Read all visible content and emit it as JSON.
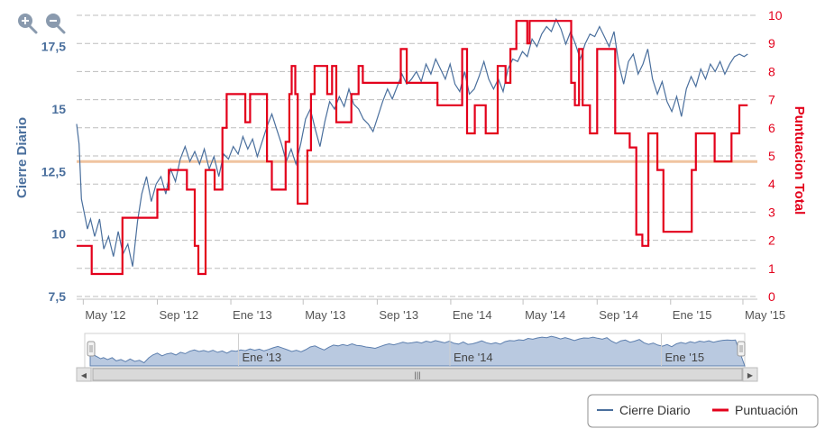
{
  "toolbar": {
    "zoom_in_icon": "zoom-in-magnifier-icon",
    "zoom_out_icon": "zoom-out-magnifier-icon"
  },
  "colors": {
    "price": "#4a6f9d",
    "score": "#e3001b",
    "average": "#f0c4a0",
    "grid": "#bdbdbd",
    "navigator_fill": "#b9c9e0",
    "navigator_line": "#5d7fae",
    "left_axis_text": "#4a6f9d",
    "right_axis_text": "#e3001b"
  },
  "legend": {
    "price_label": "Cierre Diario",
    "score_label": "Puntuación"
  },
  "navigator": {
    "labels": [
      "Ene '13",
      "Ene '14",
      "Ene '15"
    ],
    "scrollbar_grip": "|||",
    "left_arrow": "◀",
    "right_arrow": "▶"
  },
  "chart_data": {
    "type": "line",
    "title": "",
    "xlabel": "",
    "y_left": {
      "label": "Cierre Diario",
      "range": [
        7.5,
        18.75
      ],
      "ticks": [
        "7,5",
        "10",
        "12,5",
        "15",
        "17,5"
      ],
      "tick_values": [
        7.5,
        10,
        12.5,
        15,
        17.5
      ]
    },
    "y_right": {
      "label": "Puntuacion Total",
      "range": [
        0,
        10
      ],
      "ticks": [
        "0",
        "1",
        "2",
        "3",
        "4",
        "5",
        "6",
        "7",
        "8",
        "9",
        "10"
      ],
      "tick_values": [
        0,
        1,
        2,
        3,
        4,
        5,
        6,
        7,
        8,
        9,
        10
      ]
    },
    "x_axis": {
      "ticks": [
        "May '12",
        "Sep '12",
        "Ene '13",
        "May '13",
        "Sep '13",
        "Ene '14",
        "May '14",
        "Sep '14",
        "Ene '15",
        "May '15"
      ],
      "tick_dates": [
        "2012-05-01",
        "2012-09-01",
        "2013-01-01",
        "2013-05-01",
        "2013-09-01",
        "2014-01-01",
        "2014-05-01",
        "2014-09-01",
        "2015-01-01",
        "2015-05-01"
      ],
      "range": [
        "2012-04-20",
        "2015-05-25"
      ]
    },
    "grid": true,
    "legend_position": "bottom-right",
    "reference_line": {
      "axis": "right",
      "value": 4.8
    },
    "series": [
      {
        "name": "Cierre Diario",
        "axis": "left",
        "points": [
          [
            "2012-04-20",
            14.4
          ],
          [
            "2012-04-24",
            13.6
          ],
          [
            "2012-04-28",
            11.4
          ],
          [
            "2012-05-03",
            10.8
          ],
          [
            "2012-05-08",
            10.2
          ],
          [
            "2012-05-13",
            10.6
          ],
          [
            "2012-05-20",
            9.9
          ],
          [
            "2012-05-28",
            10.6
          ],
          [
            "2012-06-04",
            9.4
          ],
          [
            "2012-06-12",
            9.9
          ],
          [
            "2012-06-20",
            9.1
          ],
          [
            "2012-06-28",
            10.1
          ],
          [
            "2012-07-06",
            9.2
          ],
          [
            "2012-07-14",
            9.6
          ],
          [
            "2012-07-22",
            8.7
          ],
          [
            "2012-07-30",
            10.5
          ],
          [
            "2012-08-06",
            11.6
          ],
          [
            "2012-08-14",
            12.3
          ],
          [
            "2012-08-22",
            11.3
          ],
          [
            "2012-08-30",
            12.0
          ],
          [
            "2012-09-07",
            12.3
          ],
          [
            "2012-09-15",
            11.6
          ],
          [
            "2012-09-23",
            12.6
          ],
          [
            "2012-10-01",
            12.1
          ],
          [
            "2012-10-09",
            13.0
          ],
          [
            "2012-10-17",
            13.5
          ],
          [
            "2012-10-25",
            12.9
          ],
          [
            "2012-11-02",
            13.3
          ],
          [
            "2012-11-10",
            12.8
          ],
          [
            "2012-11-18",
            13.4
          ],
          [
            "2012-11-26",
            12.6
          ],
          [
            "2012-12-04",
            13.1
          ],
          [
            "2012-12-12",
            12.3
          ],
          [
            "2012-12-20",
            13.2
          ],
          [
            "2012-12-28",
            13.0
          ],
          [
            "2013-01-05",
            13.5
          ],
          [
            "2013-01-13",
            13.2
          ],
          [
            "2013-01-21",
            13.9
          ],
          [
            "2013-01-29",
            13.4
          ],
          [
            "2013-02-06",
            13.8
          ],
          [
            "2013-02-14",
            13.1
          ],
          [
            "2013-02-22",
            13.7
          ],
          [
            "2013-03-02",
            14.3
          ],
          [
            "2013-03-10",
            14.8
          ],
          [
            "2013-03-18",
            14.2
          ],
          [
            "2013-03-26",
            13.6
          ],
          [
            "2013-04-03",
            12.9
          ],
          [
            "2013-04-11",
            13.4
          ],
          [
            "2013-04-19",
            12.8
          ],
          [
            "2013-04-27",
            13.6
          ],
          [
            "2013-05-05",
            14.6
          ],
          [
            "2013-05-13",
            15.0
          ],
          [
            "2013-05-21",
            14.2
          ],
          [
            "2013-05-29",
            13.5
          ],
          [
            "2013-06-06",
            14.5
          ],
          [
            "2013-06-14",
            15.3
          ],
          [
            "2013-06-22",
            15.0
          ],
          [
            "2013-06-30",
            15.5
          ],
          [
            "2013-07-08",
            15.1
          ],
          [
            "2013-07-16",
            15.8
          ],
          [
            "2013-07-24",
            15.2
          ],
          [
            "2013-08-01",
            15.0
          ],
          [
            "2013-08-09",
            14.6
          ],
          [
            "2013-08-17",
            14.4
          ],
          [
            "2013-08-25",
            14.1
          ],
          [
            "2013-09-02",
            14.7
          ],
          [
            "2013-09-10",
            15.3
          ],
          [
            "2013-09-18",
            15.8
          ],
          [
            "2013-09-26",
            15.4
          ],
          [
            "2013-10-04",
            15.9
          ],
          [
            "2013-10-12",
            16.4
          ],
          [
            "2013-10-20",
            16.0
          ],
          [
            "2013-10-28",
            16.2
          ],
          [
            "2013-11-05",
            16.5
          ],
          [
            "2013-11-13",
            16.1
          ],
          [
            "2013-11-21",
            16.8
          ],
          [
            "2013-11-29",
            16.4
          ],
          [
            "2013-12-07",
            17.0
          ],
          [
            "2013-12-15",
            16.6
          ],
          [
            "2013-12-23",
            16.2
          ],
          [
            "2013-12-31",
            16.8
          ],
          [
            "2014-01-08",
            16.0
          ],
          [
            "2014-01-16",
            15.7
          ],
          [
            "2014-01-24",
            16.5
          ],
          [
            "2014-02-01",
            15.6
          ],
          [
            "2014-02-09",
            15.8
          ],
          [
            "2014-02-17",
            16.3
          ],
          [
            "2014-02-25",
            16.9
          ],
          [
            "2014-03-05",
            16.2
          ],
          [
            "2014-03-13",
            15.8
          ],
          [
            "2014-03-21",
            16.2
          ],
          [
            "2014-03-29",
            15.7
          ],
          [
            "2014-04-06",
            16.6
          ],
          [
            "2014-04-14",
            17.0
          ],
          [
            "2014-04-22",
            16.9
          ],
          [
            "2014-04-30",
            17.3
          ],
          [
            "2014-05-08",
            17.1
          ],
          [
            "2014-05-16",
            17.8
          ],
          [
            "2014-05-24",
            17.5
          ],
          [
            "2014-06-01",
            18.0
          ],
          [
            "2014-06-09",
            18.3
          ],
          [
            "2014-06-17",
            18.1
          ],
          [
            "2014-06-25",
            18.6
          ],
          [
            "2014-07-03",
            18.2
          ],
          [
            "2014-07-11",
            17.6
          ],
          [
            "2014-07-19",
            18.1
          ],
          [
            "2014-07-27",
            17.6
          ],
          [
            "2014-08-04",
            17.0
          ],
          [
            "2014-08-12",
            17.6
          ],
          [
            "2014-08-20",
            18.0
          ],
          [
            "2014-08-28",
            17.9
          ],
          [
            "2014-09-05",
            18.3
          ],
          [
            "2014-09-13",
            17.9
          ],
          [
            "2014-09-21",
            17.5
          ],
          [
            "2014-09-29",
            18.1
          ],
          [
            "2014-10-07",
            16.8
          ],
          [
            "2014-10-15",
            16.0
          ],
          [
            "2014-10-23",
            16.9
          ],
          [
            "2014-10-31",
            17.2
          ],
          [
            "2014-11-08",
            16.4
          ],
          [
            "2014-11-16",
            16.8
          ],
          [
            "2014-11-24",
            17.4
          ],
          [
            "2014-12-02",
            16.2
          ],
          [
            "2014-12-10",
            15.6
          ],
          [
            "2014-12-18",
            16.1
          ],
          [
            "2014-12-26",
            15.3
          ],
          [
            "2015-01-03",
            14.9
          ],
          [
            "2015-01-11",
            15.5
          ],
          [
            "2015-01-19",
            14.7
          ],
          [
            "2015-01-27",
            15.8
          ],
          [
            "2015-02-04",
            16.3
          ],
          [
            "2015-02-12",
            15.9
          ],
          [
            "2015-02-20",
            16.6
          ],
          [
            "2015-02-28",
            16.2
          ],
          [
            "2015-03-08",
            16.8
          ],
          [
            "2015-03-16",
            16.5
          ],
          [
            "2015-03-24",
            16.9
          ],
          [
            "2015-04-01",
            16.4
          ],
          [
            "2015-04-09",
            16.8
          ],
          [
            "2015-04-17",
            17.1
          ],
          [
            "2015-04-25",
            17.2
          ],
          [
            "2015-05-03",
            17.1
          ],
          [
            "2015-05-09",
            17.2
          ]
        ]
      },
      {
        "name": "Puntuación",
        "axis": "right",
        "step": true,
        "points": [
          [
            "2012-04-20",
            1.8
          ],
          [
            "2012-05-15",
            0.8
          ],
          [
            "2012-07-05",
            2.8
          ],
          [
            "2012-08-05",
            2.8
          ],
          [
            "2012-09-01",
            3.8
          ],
          [
            "2012-09-20",
            4.5
          ],
          [
            "2012-10-20",
            3.8
          ],
          [
            "2012-11-02",
            1.8
          ],
          [
            "2012-11-08",
            0.8
          ],
          [
            "2012-11-20",
            4.5
          ],
          [
            "2012-12-05",
            3.8
          ],
          [
            "2012-12-18",
            6.0
          ],
          [
            "2012-12-25",
            7.2
          ],
          [
            "2013-01-25",
            6.2
          ],
          [
            "2013-02-02",
            7.2
          ],
          [
            "2013-03-02",
            4.8
          ],
          [
            "2013-03-10",
            3.8
          ],
          [
            "2013-04-02",
            5.5
          ],
          [
            "2013-04-08",
            7.2
          ],
          [
            "2013-04-12",
            8.2
          ],
          [
            "2013-04-18",
            7.2
          ],
          [
            "2013-04-22",
            3.3
          ],
          [
            "2013-05-08",
            5.2
          ],
          [
            "2013-05-14",
            7.2
          ],
          [
            "2013-05-20",
            8.2
          ],
          [
            "2013-06-10",
            7.2
          ],
          [
            "2013-06-18",
            8.2
          ],
          [
            "2013-06-25",
            6.2
          ],
          [
            "2013-07-20",
            7.2
          ],
          [
            "2013-08-01",
            8.2
          ],
          [
            "2013-08-08",
            7.6
          ],
          [
            "2013-09-20",
            7.6
          ],
          [
            "2013-10-10",
            8.8
          ],
          [
            "2013-10-20",
            7.6
          ],
          [
            "2013-11-20",
            7.6
          ],
          [
            "2013-12-10",
            6.8
          ],
          [
            "2014-01-20",
            8.8
          ],
          [
            "2014-01-28",
            5.8
          ],
          [
            "2014-02-10",
            6.8
          ],
          [
            "2014-02-28",
            5.8
          ],
          [
            "2014-03-20",
            8.2
          ],
          [
            "2014-04-02",
            7.6
          ],
          [
            "2014-04-10",
            8.8
          ],
          [
            "2014-04-20",
            9.8
          ],
          [
            "2014-05-08",
            9.0
          ],
          [
            "2014-05-12",
            9.8
          ],
          [
            "2014-07-20",
            7.6
          ],
          [
            "2014-07-26",
            6.8
          ],
          [
            "2014-08-02",
            8.8
          ],
          [
            "2014-08-08",
            6.8
          ],
          [
            "2014-08-20",
            5.8
          ],
          [
            "2014-09-01",
            8.8
          ],
          [
            "2014-10-01",
            5.8
          ],
          [
            "2014-10-25",
            5.3
          ],
          [
            "2014-11-05",
            2.2
          ],
          [
            "2014-11-15",
            1.8
          ],
          [
            "2014-11-25",
            5.8
          ],
          [
            "2014-12-10",
            4.5
          ],
          [
            "2014-12-20",
            2.3
          ],
          [
            "2015-02-05",
            4.5
          ],
          [
            "2015-02-12",
            5.8
          ],
          [
            "2015-03-15",
            4.8
          ],
          [
            "2015-03-28",
            4.8
          ],
          [
            "2015-04-12",
            5.8
          ],
          [
            "2015-04-25",
            6.8
          ],
          [
            "2015-05-09",
            6.8
          ]
        ]
      }
    ]
  }
}
